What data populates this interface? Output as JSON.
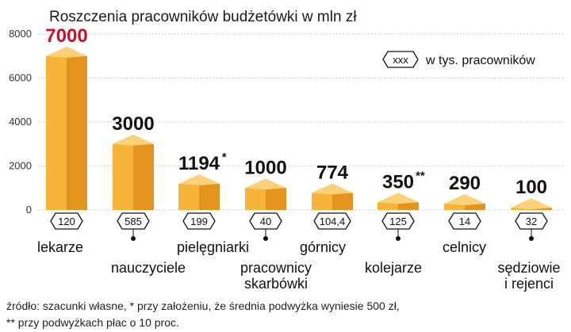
{
  "chart_data": {
    "type": "bar",
    "title": "Roszczenia pracowników budżetówki w mln zł",
    "ylim": [
      0,
      8000
    ],
    "yticks": [
      "0",
      "2000",
      "4000",
      "6000",
      "8000"
    ],
    "grid": true,
    "legend": {
      "symbol_text": "xxx",
      "text": "w tys. pracowników",
      "position": "top-right"
    },
    "categories": [
      {
        "label": [
          "lekarze"
        ],
        "value": 7000,
        "value_label": "7000",
        "star": "",
        "count": "120",
        "highlight": true
      },
      {
        "label": [
          "nauczyciele"
        ],
        "value": 3000,
        "value_label": "3000",
        "star": "",
        "count": "585",
        "highlight": false
      },
      {
        "label": [
          "pielęgniarki"
        ],
        "value": 1194,
        "value_label": "1194",
        "star": "*",
        "count": "199",
        "highlight": false
      },
      {
        "label": [
          "pracownicy",
          "skarbówki"
        ],
        "value": 1000,
        "value_label": "1000",
        "star": "",
        "count": "40",
        "highlight": false
      },
      {
        "label": [
          "górnicy"
        ],
        "value": 774,
        "value_label": "774",
        "star": "",
        "count": "104,4",
        "highlight": false
      },
      {
        "label": [
          "kolejarze"
        ],
        "value": 350,
        "value_label": "350",
        "star": "**",
        "count": "125",
        "highlight": false
      },
      {
        "label": [
          "celnicy"
        ],
        "value": 290,
        "value_label": "290",
        "star": "",
        "count": "14",
        "highlight": false
      },
      {
        "label": [
          "sędziowie",
          "i rejenci"
        ],
        "value": 100,
        "value_label": "100",
        "star": "",
        "count": "32",
        "highlight": false
      }
    ],
    "notes": [
      "źródło: szacunki własne, * przy założeniu, że średnia podwyżka wyniesie 500 zł,",
      "** przy podwyżkach płac o 10 proc."
    ]
  },
  "colors": {
    "front": "#f6b53a",
    "side": "#e3931e",
    "top": "#fbd278",
    "grid": "#bdbdbd",
    "highlight": "#c8102e"
  }
}
